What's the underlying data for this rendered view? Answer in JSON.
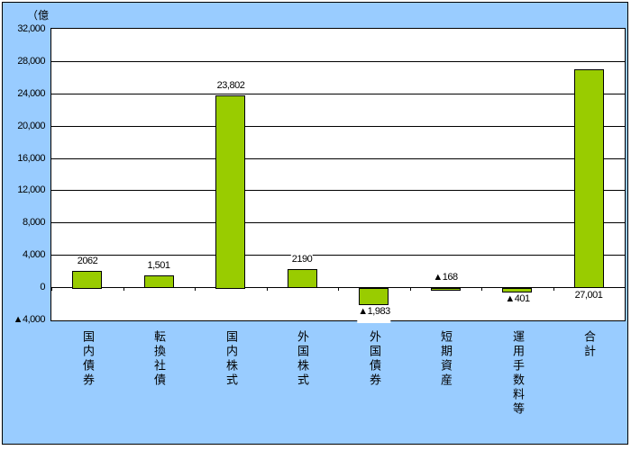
{
  "chart_data": {
    "type": "bar",
    "title": "",
    "unit_label": "（億",
    "categories": [
      "国内債券",
      "転換社債",
      "国内株式",
      "外国株式",
      "外国債券",
      "短期資産",
      "運用手数料等",
      "合計"
    ],
    "values": [
      2062,
      1501,
      23802,
      2190,
      -1983,
      -168,
      -401,
      27001
    ],
    "value_labels": [
      "2062",
      "1,501",
      "23,802",
      "2190",
      "▲1,983",
      "▲168",
      "▲401",
      "27,001"
    ],
    "label_side": [
      "top",
      "top",
      "top",
      "top",
      "bottom",
      "top",
      "bottom",
      "bottom"
    ],
    "y_ticks": [
      {
        "label": "32,000",
        "value": 32000
      },
      {
        "label": "28,000",
        "value": 28000
      },
      {
        "label": "24,000",
        "value": 24000
      },
      {
        "label": "20,000",
        "value": 20000
      },
      {
        "label": "16,000",
        "value": 16000
      },
      {
        "label": "12,000",
        "value": 12000
      },
      {
        "label": "8,000",
        "value": 8000
      },
      {
        "label": "4,000",
        "value": 4000
      },
      {
        "label": "0",
        "value": 0
      },
      {
        "label": "▲4,000",
        "value": -4000
      }
    ],
    "ylim": [
      -4000,
      32000
    ],
    "grid": true,
    "legend": false,
    "xlabel": "",
    "ylabel": "",
    "colors": {
      "bar": "#99CC00",
      "bar_border": "#000000",
      "background": "#99CCFF",
      "plot": "#FFFFFF",
      "grid": "#000000"
    }
  }
}
